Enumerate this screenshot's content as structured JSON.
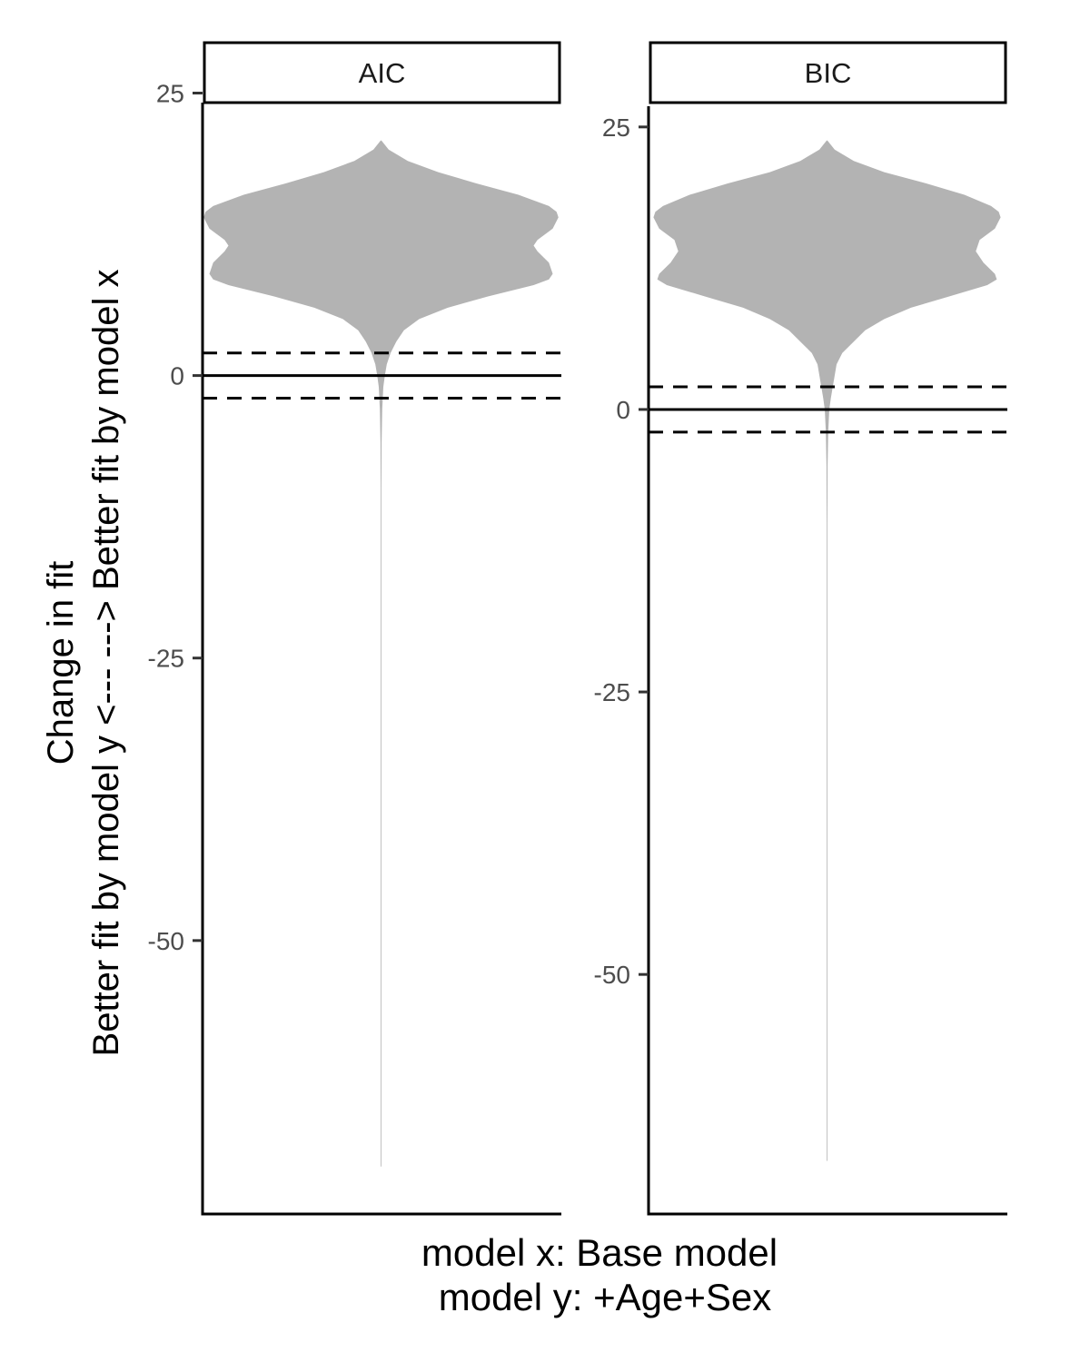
{
  "chart_data": {
    "type": "violin",
    "ylabel_line1": "Change in fit",
    "ylabel_line2": "Better fit by model y <---  ---> Better fit by model x",
    "caption_line1": "model x:  Base model",
    "caption_line2": "model y:  +Age+Sex",
    "violin_color": "#b3b3b3",
    "reference_lines": [
      {
        "y": 0,
        "style": "solid"
      },
      {
        "y": 2,
        "style": "dashed"
      },
      {
        "y": -2,
        "style": "dashed"
      }
    ],
    "panels": [
      {
        "facet_label": "AIC",
        "ylim": [
          -74.2,
          25.2
        ],
        "yticks": [
          25,
          0,
          -25,
          -50
        ],
        "ytick_labels": [
          "25",
          "0",
          "-25",
          "-50"
        ],
        "distribution": {
          "min": -70,
          "max": 20.8,
          "width_profile": [
            [
              20.8,
              0.0
            ],
            [
              20,
              0.04
            ],
            [
              19,
              0.14
            ],
            [
              18,
              0.3
            ],
            [
              17,
              0.5
            ],
            [
              16,
              0.72
            ],
            [
              15,
              0.88
            ],
            [
              14.5,
              0.92
            ],
            [
              14,
              0.93
            ],
            [
              13,
              0.9
            ],
            [
              12,
              0.82
            ],
            [
              11.5,
              0.8
            ],
            [
              11,
              0.82
            ],
            [
              10,
              0.88
            ],
            [
              9,
              0.9
            ],
            [
              8.5,
              0.88
            ],
            [
              8,
              0.8
            ],
            [
              7,
              0.56
            ],
            [
              6,
              0.35
            ],
            [
              5,
              0.2
            ],
            [
              4,
              0.12
            ],
            [
              3,
              0.08
            ],
            [
              2,
              0.05
            ],
            [
              1,
              0.03
            ],
            [
              0,
              0.02
            ],
            [
              -1,
              0.012
            ],
            [
              -3,
              0.006
            ],
            [
              -6,
              0.003
            ],
            [
              -10,
              0.0015
            ],
            [
              -20,
              0.001
            ],
            [
              -40,
              0.0008
            ],
            [
              -70,
              0.0
            ]
          ]
        }
      },
      {
        "facet_label": "BIC",
        "ylim": [
          -71.2,
          28.2
        ],
        "yticks": [
          25,
          0,
          -25,
          -50
        ],
        "ytick_labels": [
          "25",
          "0",
          "-25",
          "-50"
        ],
        "distribution": {
          "min": -66.5,
          "max": 23.8,
          "width_profile": [
            [
              23.8,
              0.0
            ],
            [
              23,
              0.04
            ],
            [
              22,
              0.14
            ],
            [
              21,
              0.3
            ],
            [
              20,
              0.52
            ],
            [
              19,
              0.72
            ],
            [
              18,
              0.86
            ],
            [
              17.5,
              0.9
            ],
            [
              17,
              0.91
            ],
            [
              16,
              0.88
            ],
            [
              15,
              0.8
            ],
            [
              14,
              0.78
            ],
            [
              13,
              0.82
            ],
            [
              12,
              0.88
            ],
            [
              11.5,
              0.89
            ],
            [
              11,
              0.84
            ],
            [
              10,
              0.64
            ],
            [
              9,
              0.44
            ],
            [
              8,
              0.3
            ],
            [
              7,
              0.2
            ],
            [
              6,
              0.14
            ],
            [
              5,
              0.08
            ],
            [
              4,
              0.05
            ],
            [
              3,
              0.04
            ],
            [
              2,
              0.03
            ],
            [
              1,
              0.02
            ],
            [
              0,
              0.012
            ],
            [
              -2,
              0.006
            ],
            [
              -5,
              0.003
            ],
            [
              -10,
              0.0015
            ],
            [
              -20,
              0.001
            ],
            [
              -40,
              0.0008
            ],
            [
              -66.5,
              0.0
            ]
          ]
        }
      }
    ]
  }
}
